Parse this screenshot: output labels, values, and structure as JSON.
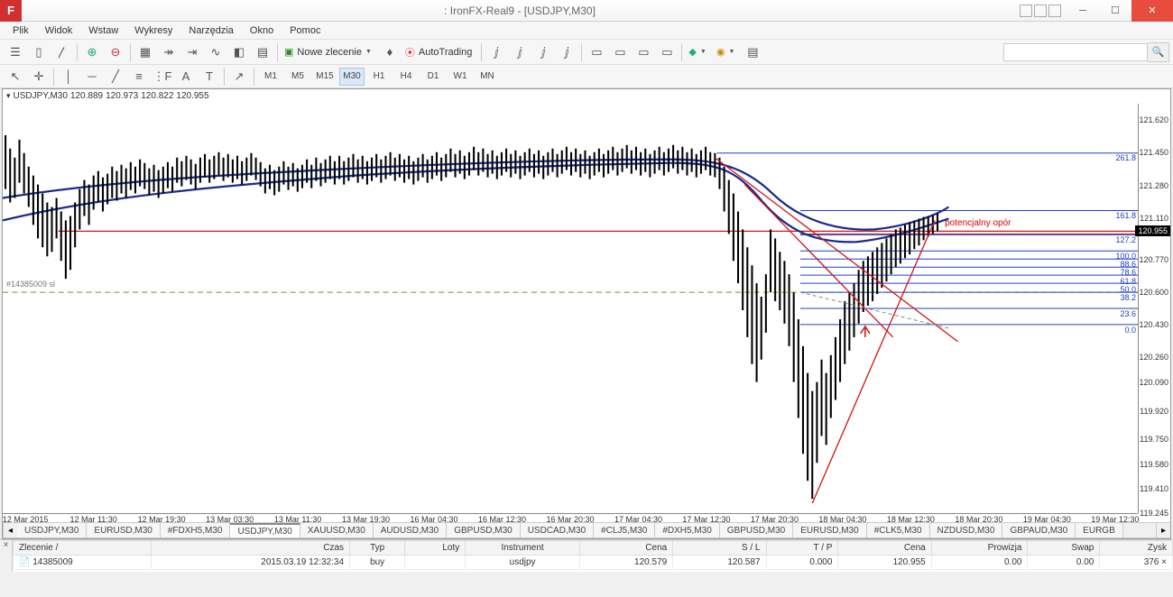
{
  "window": {
    "title": ": IronFX-Real9 - [USDJPY,M30]",
    "app_badge": "F"
  },
  "menu": [
    "Plik",
    "Widok",
    "Wstaw",
    "Wykresy",
    "Narzędzia",
    "Okno",
    "Pomoc"
  ],
  "toolbar": {
    "new_order_label": "Nowe zlecenie",
    "autotrading_label": "AutoTrading"
  },
  "timeframes": [
    "M1",
    "M5",
    "M15",
    "M30",
    "H1",
    "H4",
    "D1",
    "W1",
    "MN"
  ],
  "active_timeframe": "M30",
  "chart": {
    "symbol_header": "USDJPY,M30",
    "ohlc": [
      "120.889",
      "120.973",
      "120.822",
      "120.955"
    ],
    "order_tag": "#14385009 sl",
    "annotation_resistance": "potencjalny opór",
    "current_price": "120.955",
    "price_axis": [
      {
        "v": "121.620",
        "pct": 4
      },
      {
        "v": "121.450",
        "pct": 12
      },
      {
        "v": "121.280",
        "pct": 20
      },
      {
        "v": "121.110",
        "pct": 28
      },
      {
        "v": "120.955",
        "pct": 31,
        "price": true
      },
      {
        "v": "120.770",
        "pct": 38
      },
      {
        "v": "120.600",
        "pct": 46
      },
      {
        "v": "120.430",
        "pct": 54
      },
      {
        "v": "120.260",
        "pct": 62
      },
      {
        "v": "120.090",
        "pct": 68
      },
      {
        "v": "119.920",
        "pct": 75
      },
      {
        "v": "119.750",
        "pct": 82
      },
      {
        "v": "119.580",
        "pct": 88
      },
      {
        "v": "119.410",
        "pct": 94
      },
      {
        "v": "119.245",
        "pct": 100
      }
    ],
    "time_axis": [
      {
        "v": "12 Mar 2015",
        "pct": 2
      },
      {
        "v": "12 Mar 11:30",
        "pct": 8
      },
      {
        "v": "12 Mar 19:30",
        "pct": 14
      },
      {
        "v": "13 Mar 03:30",
        "pct": 20
      },
      {
        "v": "13 Mar 11:30",
        "pct": 26
      },
      {
        "v": "13 Mar 19:30",
        "pct": 32
      },
      {
        "v": "16 Mar 04:30",
        "pct": 38
      },
      {
        "v": "16 Mar 12:30",
        "pct": 44
      },
      {
        "v": "16 Mar 20:30",
        "pct": 50
      },
      {
        "v": "17 Mar 04:30",
        "pct": 56
      },
      {
        "v": "17 Mar 12:30",
        "pct": 62
      },
      {
        "v": "17 Mar 20:30",
        "pct": 68
      },
      {
        "v": "18 Mar 04:30",
        "pct": 74
      },
      {
        "v": "18 Mar 12:30",
        "pct": 80
      },
      {
        "v": "18 Mar 20:30",
        "pct": 86
      },
      {
        "v": "19 Mar 04:30",
        "pct": 92
      },
      {
        "v": "19 Mar 12:30",
        "pct": 98
      }
    ],
    "fib_levels": [
      {
        "label": "261.8",
        "pct": 12
      },
      {
        "label": "161.8",
        "pct": 26
      },
      {
        "label": "127.2",
        "pct": 32
      },
      {
        "label": "100.0",
        "pct": 36
      },
      {
        "label": "88.6",
        "pct": 38
      },
      {
        "label": "78.6",
        "pct": 40
      },
      {
        "label": "61.8",
        "pct": 42
      },
      {
        "label": "50.0",
        "pct": 44
      },
      {
        "label": "38.2",
        "pct": 46
      },
      {
        "label": "23.6",
        "pct": 50
      },
      {
        "label": "0.0",
        "pct": 54
      }
    ],
    "colors": {
      "candle_body": "#000000",
      "ma_line1": "#1a2a8a",
      "ma_line2": "#1a2a8a",
      "hline_red": "#d01818",
      "trend_red": "#d01818",
      "hline_olive_dashed": "#8a8a2a",
      "fib_blue": "#2040c0",
      "background": "#ffffff",
      "grid": "#e9e9e9"
    }
  },
  "symbol_tabs": [
    "USDJPY,M30",
    "EURUSD,M30",
    "#FDXH5,M30",
    "USDJPY,M30",
    "XAUUSD,M30",
    "AUDUSD,M30",
    "GBPUSD,M30",
    "USDCAD,M30",
    "#CLJ5,M30",
    "#DXH5,M30",
    "GBPUSD,M30",
    "EURUSD,M30",
    "#CLK5,M30",
    "NZDUSD,M30",
    "GBPAUD,M30",
    "EURGB"
  ],
  "active_symbol_tab": 3,
  "orders_table": {
    "columns": [
      "Zlecenie  /",
      "Czas",
      "Typ",
      "Loty",
      "Instrument",
      "Cena",
      "S / L",
      "T / P",
      "Cena",
      "Prowizja",
      "Swap",
      "Zysk"
    ],
    "row": {
      "id": "14385009",
      "time": "2015.03.19 12:32:34",
      "type": "buy",
      "lots": "",
      "instrument": "usdjpy",
      "price_open": "120.579",
      "sl": "120.587",
      "tp": "0.000",
      "price_now": "120.955",
      "commission": "0.00",
      "swap": "0.00",
      "profit": "376"
    }
  }
}
